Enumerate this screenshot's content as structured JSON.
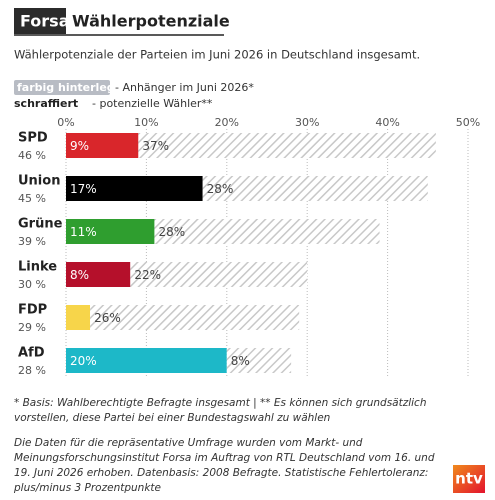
{
  "brand": "Forsa",
  "logo": "ntv",
  "chart_data": {
    "type": "stacked-bar-horizontal",
    "title": "Wählerpotenziale",
    "subtitle": "Wählerpotenziale der Parteien im Juni 2026 in Deutschland insgesamt.",
    "categories": [
      "SPD",
      "Union",
      "Grüne",
      "Linke",
      "FDP",
      "AfD"
    ],
    "total_labels": [
      "46 %",
      "45 %",
      "39 %",
      "30 %",
      "29 %",
      "28 %"
    ],
    "series": [
      {
        "name": "farbig hinterlegt",
        "description": "- Anhänger im Juni 2026*",
        "colors": [
          "#d9262b",
          "#000000",
          "#2f9e2f",
          "#b5102b",
          "#f7d54a",
          "#1db8c8"
        ],
        "values": [
          9,
          17,
          11,
          8,
          3,
          20
        ],
        "value_labels": [
          "9%",
          "17%",
          "11%",
          "8%",
          null,
          "20%"
        ]
      },
      {
        "name": "schraffiert",
        "description": "- potenzielle Wähler**",
        "color": "#c8c8c8",
        "values": [
          37,
          28,
          28,
          22,
          26,
          8
        ],
        "value_labels": [
          "37%",
          "28%",
          "28%",
          "22%",
          "26%",
          "8%"
        ]
      }
    ],
    "xlim": [
      0,
      50
    ],
    "xticks": [
      {
        "value": 0,
        "label": "0%"
      },
      {
        "value": 10,
        "label": "10%"
      },
      {
        "value": 20,
        "label": "20%"
      },
      {
        "value": 30,
        "label": "30%"
      },
      {
        "value": 40,
        "label": "40%"
      },
      {
        "value": 50,
        "label": "50%"
      }
    ],
    "grid": true,
    "footnote": "* Basis: Wahlberechtigte Befragte insgesamt | ** Es können sich grundsätzlich vorstellen, diese Partei bei einer Bundestagswahl zu wählen",
    "source": "Die Daten für die repräsentative Umfrage wurden vom Markt- und Meinungsforschungsinstitut Forsa im Auftrag von RTL Deutschland vom 16. und 19. Juni 2026 erhoben. Datenbasis: 2008 Befragte. Statistische Fehlertoleranz: plus/minus 3 Prozentpunkte"
  }
}
